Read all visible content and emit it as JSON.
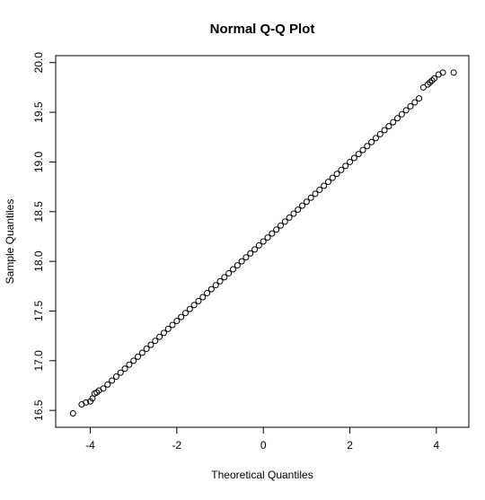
{
  "chart_data": {
    "type": "scatter",
    "title": "Normal Q-Q Plot",
    "x_label": "Theoretical Quantiles",
    "y_label": "Sample Quantiles",
    "color": "#000000",
    "x": [
      -4.4,
      -4.2,
      -4.1,
      -4.0,
      -3.95,
      -3.9,
      -3.85,
      -3.8,
      -3.7,
      -3.6,
      -3.5,
      -3.4,
      -3.3,
      -3.2,
      -3.1,
      -3.0,
      -2.9,
      -2.8,
      -2.7,
      -2.6,
      -2.5,
      -2.4,
      -2.3,
      -2.2,
      -2.1,
      -2.0,
      -1.9,
      -1.8,
      -1.7,
      -1.6,
      -1.5,
      -1.4,
      -1.3,
      -1.2,
      -1.1,
      -1.0,
      -0.9,
      -0.8,
      -0.7,
      -0.6,
      -0.5,
      -0.4,
      -0.3,
      -0.2,
      -0.1,
      0,
      0.1,
      0.2,
      0.3,
      0.4,
      0.5,
      0.6,
      0.7,
      0.8,
      0.9,
      1.0,
      1.1,
      1.2,
      1.3,
      1.4,
      1.5,
      1.6,
      1.7,
      1.8,
      1.9,
      2.0,
      2.1,
      2.2,
      2.3,
      2.4,
      2.5,
      2.6,
      2.7,
      2.8,
      2.9,
      3.0,
      3.1,
      3.2,
      3.3,
      3.4,
      3.5,
      3.6,
      3.7,
      3.8,
      3.85,
      3.9,
      3.95,
      4.05,
      4.15,
      4.4
    ],
    "y": [
      16.47,
      16.56,
      16.58,
      16.59,
      16.62,
      16.67,
      16.68,
      16.7,
      16.72,
      16.76,
      16.8,
      16.84,
      16.88,
      16.92,
      16.96,
      17.0,
      17.04,
      17.08,
      17.12,
      17.16,
      17.2,
      17.24,
      17.28,
      17.32,
      17.36,
      17.4,
      17.44,
      17.48,
      17.52,
      17.56,
      17.6,
      17.64,
      17.68,
      17.72,
      17.76,
      17.8,
      17.84,
      17.88,
      17.92,
      17.96,
      18.0,
      18.04,
      18.08,
      18.12,
      18.16,
      18.2,
      18.24,
      18.28,
      18.32,
      18.36,
      18.4,
      18.44,
      18.48,
      18.52,
      18.56,
      18.6,
      18.64,
      18.68,
      18.72,
      18.76,
      18.8,
      18.84,
      18.88,
      18.92,
      18.96,
      19.0,
      19.04,
      19.08,
      19.12,
      19.16,
      19.2,
      19.24,
      19.28,
      19.32,
      19.36,
      19.4,
      19.44,
      19.48,
      19.52,
      19.56,
      19.6,
      19.64,
      19.75,
      19.78,
      19.8,
      19.82,
      19.84,
      19.88,
      19.9,
      19.9
    ],
    "xlim": [
      -4.8,
      4.75
    ],
    "ylim": [
      16.33,
      20.07
    ],
    "xticks": [
      -4,
      -2,
      0,
      2,
      4
    ],
    "yticks": [
      16.5,
      {
        "value": 17,
        "label": "17.0"
      },
      17.5,
      {
        "value": 18,
        "label": "18.0"
      },
      18.5,
      {
        "value": 19,
        "label": "19.0"
      },
      19.5,
      {
        "value": 20,
        "label": "20.0"
      }
    ]
  }
}
